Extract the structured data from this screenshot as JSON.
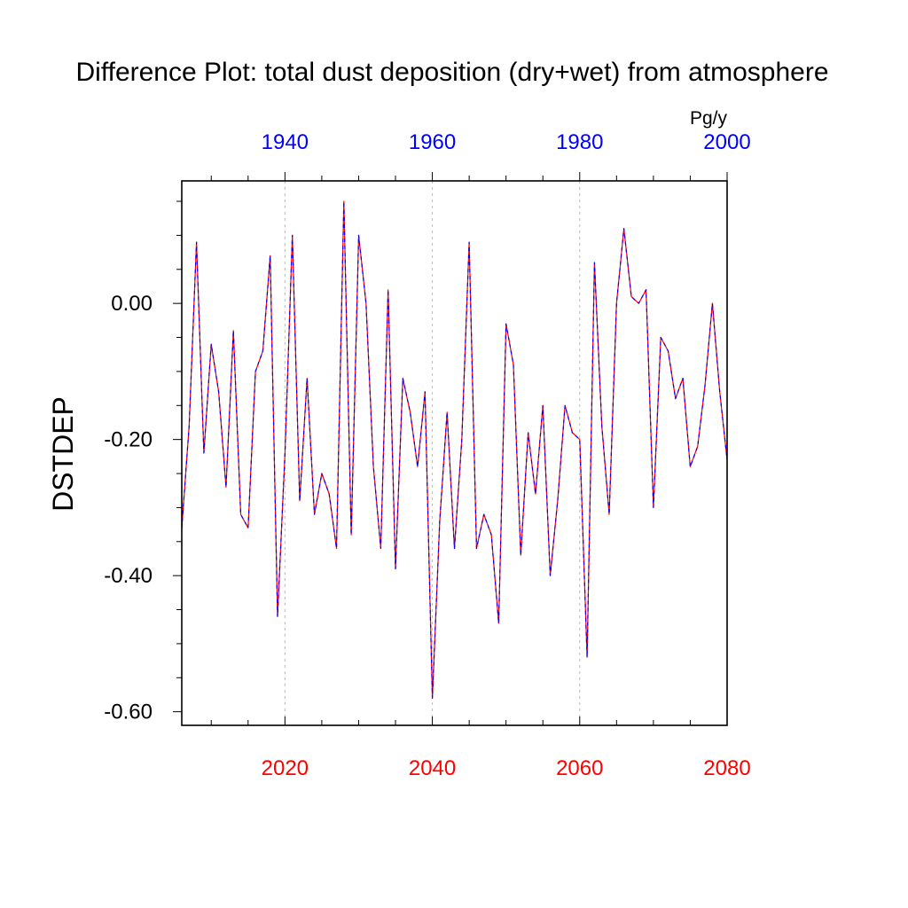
{
  "chart_data": {
    "type": "line",
    "title": "Difference Plot: total dust deposition (dry+wet) from atmosphere",
    "ylabel": "DSTDEP",
    "units": "Pg/y",
    "x": [
      2006,
      2007,
      2008,
      2009,
      2010,
      2011,
      2012,
      2013,
      2014,
      2015,
      2016,
      2017,
      2018,
      2019,
      2020,
      2021,
      2022,
      2023,
      2024,
      2025,
      2026,
      2027,
      2028,
      2029,
      2030,
      2031,
      2032,
      2033,
      2034,
      2035,
      2036,
      2037,
      2038,
      2039,
      2040,
      2041,
      2042,
      2043,
      2044,
      2045,
      2046,
      2047,
      2048,
      2049,
      2050,
      2051,
      2052,
      2053,
      2054,
      2055,
      2056,
      2057,
      2058,
      2059,
      2060,
      2061,
      2062,
      2063,
      2064,
      2065,
      2066,
      2067,
      2068,
      2069,
      2070,
      2071,
      2072,
      2073,
      2074,
      2075,
      2076,
      2077,
      2078,
      2079,
      2080
    ],
    "series": [
      {
        "color": "#ff0000",
        "values": [
          -0.33,
          -0.18,
          0.09,
          -0.22,
          -0.06,
          -0.13,
          -0.27,
          -0.04,
          -0.31,
          -0.33,
          -0.1,
          -0.07,
          0.07,
          -0.46,
          -0.22,
          0.1,
          -0.29,
          -0.11,
          -0.31,
          -0.25,
          -0.28,
          -0.36,
          0.15,
          -0.34,
          0.1,
          0.0,
          -0.24,
          -0.36,
          0.02,
          -0.39,
          -0.11,
          -0.16,
          -0.24,
          -0.13,
          -0.58,
          -0.32,
          -0.16,
          -0.36,
          -0.2,
          0.09,
          -0.36,
          -0.31,
          -0.34,
          -0.47,
          -0.03,
          -0.09,
          -0.37,
          -0.19,
          -0.28,
          -0.15,
          -0.4,
          -0.29,
          -0.15,
          -0.19,
          -0.2,
          -0.52,
          0.06,
          -0.18,
          -0.31,
          0.0,
          0.11,
          0.01,
          0.0,
          0.02,
          -0.3,
          -0.05,
          -0.07,
          -0.14,
          -0.11,
          -0.24,
          -0.21,
          -0.12,
          0.0,
          -0.13,
          -0.23
        ]
      },
      {
        "color": "#0000ff",
        "values": [
          -0.33,
          -0.18,
          0.09,
          -0.22,
          -0.06,
          -0.13,
          -0.27,
          -0.04,
          -0.31,
          -0.33,
          -0.1,
          -0.07,
          0.07,
          -0.46,
          -0.22,
          0.1,
          -0.29,
          -0.11,
          -0.31,
          -0.25,
          -0.28,
          -0.36,
          0.15,
          -0.34,
          0.1,
          0.0,
          -0.24,
          -0.36,
          0.02,
          -0.39,
          -0.11,
          -0.16,
          -0.24,
          -0.13,
          -0.58,
          -0.32,
          -0.16,
          -0.36,
          -0.2,
          0.09,
          -0.36,
          -0.31,
          -0.34,
          -0.47,
          -0.03,
          -0.09,
          -0.37,
          -0.19,
          -0.28,
          -0.15,
          -0.4,
          -0.29,
          -0.15,
          -0.19,
          -0.2,
          -0.52,
          0.06,
          -0.18,
          -0.31,
          0.0,
          0.11,
          0.01,
          0.0,
          0.02,
          -0.3,
          -0.05,
          -0.07,
          -0.14,
          -0.11,
          -0.24,
          -0.21,
          -0.12,
          0.0,
          -0.13,
          -0.23
        ]
      }
    ],
    "xlim": [
      2006,
      2080
    ],
    "ylim": [
      -0.62,
      0.18
    ],
    "bottom_axis": {
      "color": "#ff0000",
      "ticks": [
        2020,
        2040,
        2060,
        2080
      ],
      "labels": [
        "2020",
        "2040",
        "2060",
        "2080"
      ]
    },
    "top_axis": {
      "color": "#0000ff",
      "offset_years": -80,
      "ticks": [
        1940,
        1960,
        1980,
        2000
      ],
      "labels": [
        "1940",
        "1960",
        "1980",
        "2000"
      ]
    },
    "y_ticks": [
      0.0,
      -0.2,
      -0.4,
      -0.6
    ],
    "y_tick_labels": [
      "0.00",
      "-0.20",
      "-0.40",
      "-0.60"
    ],
    "y_minor_step": 0.05,
    "x_minor_step": 5,
    "grid": "dashed vertical lines at major bottom-axis ticks"
  }
}
